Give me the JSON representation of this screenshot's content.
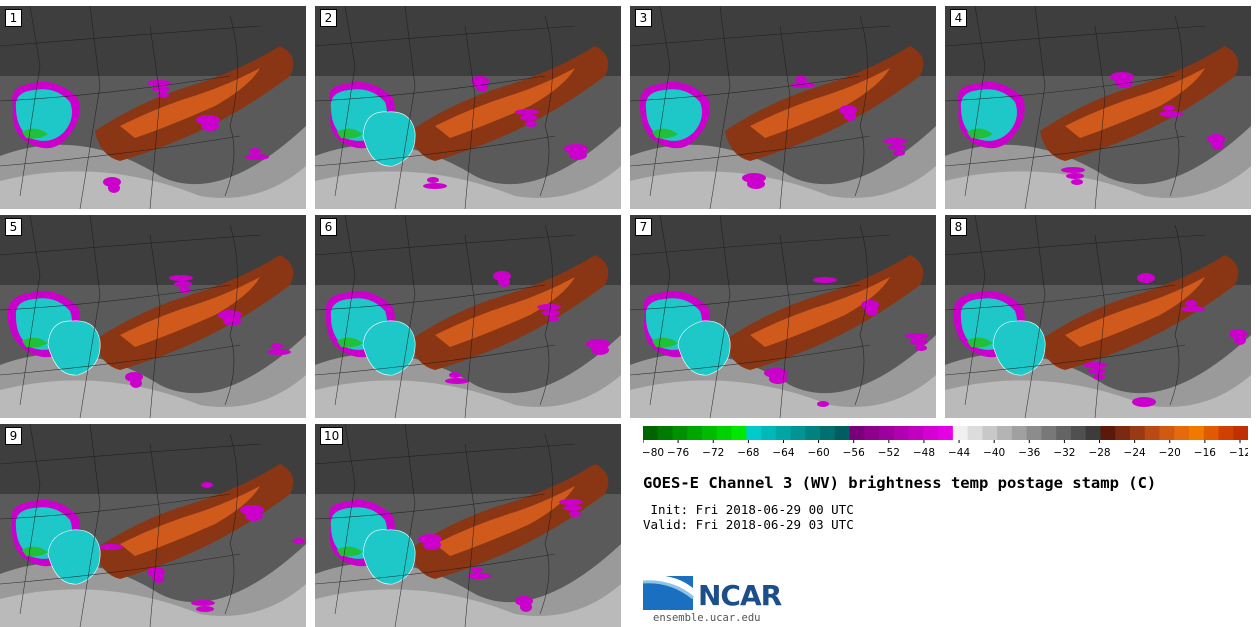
{
  "stamps": [
    {
      "label": "1",
      "blobs": "single"
    },
    {
      "label": "2",
      "blobs": "double"
    },
    {
      "label": "3",
      "blobs": "single"
    },
    {
      "label": "4",
      "blobs": "single-small"
    },
    {
      "label": "5",
      "blobs": "double"
    },
    {
      "label": "6",
      "blobs": "double"
    },
    {
      "label": "7",
      "blobs": "double"
    },
    {
      "label": "8",
      "blobs": "double"
    },
    {
      "label": "9",
      "blobs": "double"
    },
    {
      "label": "10",
      "blobs": "double"
    }
  ],
  "colorbar": {
    "ticks": [
      "−80",
      "−76",
      "−72",
      "−68",
      "−64",
      "−60",
      "−56",
      "−52",
      "−48",
      "−44",
      "−40",
      "−36",
      "−32",
      "−28",
      "−24",
      "−20",
      "−16",
      "−12"
    ],
    "colors": [
      "#006400",
      "#007a00",
      "#009000",
      "#00a600",
      "#00bc00",
      "#00d200",
      "#00e800",
      "#00ca ca",
      "#00b8b8",
      "#00a6a6",
      "#009494",
      "#008282",
      "#007070",
      "#005e5e",
      "#7a007a",
      "#8c008c",
      "#9e009e",
      "#b000b0",
      "#c200c2",
      "#d400d4",
      "#e600e6",
      "#f0f0f0",
      "#dcdcdc",
      "#c8c8c8",
      "#b4b4b4",
      "#a0a0a0",
      "#8c8c8c",
      "#787878",
      "#646464",
      "#505050",
      "#3c3c3c",
      "#5a1a0a",
      "#7a2a10",
      "#9a3a14",
      "#ba4a14",
      "#d25a10",
      "#e66a0c",
      "#f07a00",
      "#e05a00",
      "#d04000",
      "#c03000"
    ]
  },
  "title": "GOES-E Channel 3 (WV) brightness temp postage stamp (C)",
  "init": " Init: Fri 2018-06-29 00 UTC",
  "valid": "Valid: Fri 2018-06-29 03 UTC",
  "logo": {
    "text": "NCAR",
    "url": "ensemble.ucar.edu"
  },
  "colors": {
    "cyan": "#1ec8c8",
    "magenta": "#cc00cc",
    "brown": "#8a3514",
    "orange": "#d05a1c",
    "gray": "#5a5a5a"
  }
}
